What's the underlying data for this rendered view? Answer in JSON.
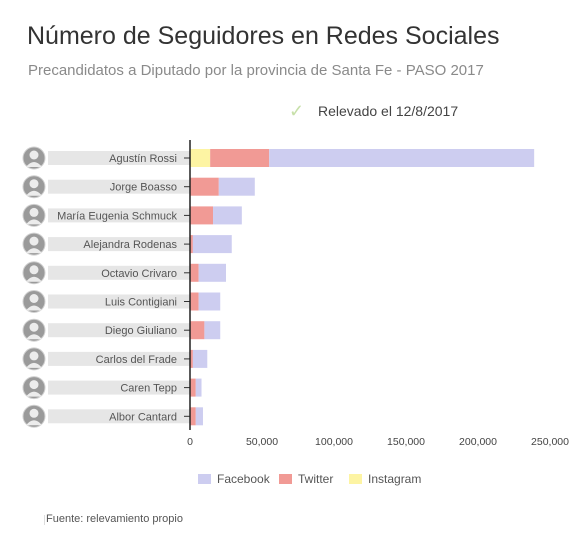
{
  "header": {
    "title": "Número de Seguidores en Redes Sociales",
    "subtitle": "Precandidatos a Diputado por la provincia de Santa Fe - PASO 2017",
    "note": "Relevado el 12/8/2017"
  },
  "source": "Fuente: relevamiento propio",
  "colors": {
    "facebook": "#cdcdf0",
    "twitter": "#f19a95",
    "instagram": "#fdf4a3",
    "label_band": "#e6e6e6"
  },
  "chart_data": {
    "type": "bar",
    "orientation": "horizontal",
    "stacked": true,
    "title": "Número de Seguidores en Redes Sociales",
    "subtitle": "Precandidatos a Diputado por la provincia de Santa Fe - PASO 2017",
    "categories": [
      "Agustín Rossi",
      "Jorge Boasso",
      "María Eugenia Schmuck",
      "Alejandra Rodenas",
      "Octavio Crivaro",
      "Luis Contigiani",
      "Diego Giuliano",
      "Carlos del Frade",
      "Caren Tepp",
      "Albor Cantard"
    ],
    "series": [
      {
        "name": "Instagram",
        "values": [
          14000,
          0,
          0,
          0,
          0,
          0,
          0,
          0,
          0,
          0
        ]
      },
      {
        "name": "Twitter",
        "values": [
          41000,
          20000,
          16000,
          2000,
          6000,
          6000,
          10000,
          2000,
          4000,
          4000
        ]
      },
      {
        "name": "Facebook",
        "values": [
          184000,
          25000,
          20000,
          27000,
          19000,
          15000,
          11000,
          10000,
          4000,
          5000
        ]
      }
    ],
    "legend": [
      "Facebook",
      "Twitter",
      "Instagram"
    ],
    "xlim": [
      0,
      250000
    ],
    "xticks": [
      0,
      50000,
      100000,
      150000,
      200000,
      250000
    ],
    "xtick_labels": [
      "0",
      "50,000",
      "100,000",
      "150,000",
      "200,000",
      "250,000"
    ],
    "grid": false,
    "legend_position": "bottom"
  }
}
